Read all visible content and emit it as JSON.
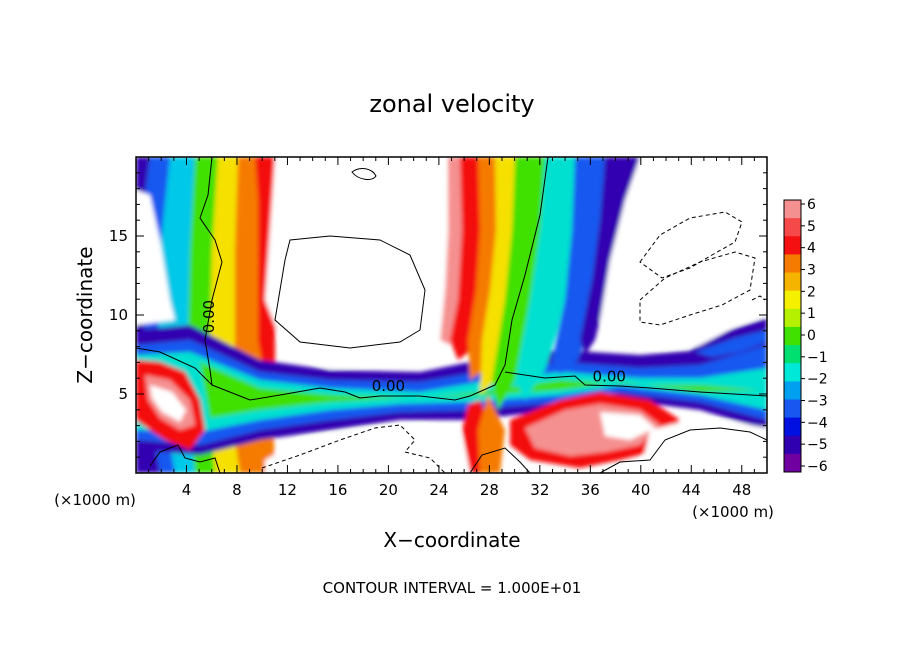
{
  "chart_data": {
    "type": "heatmap",
    "title": "zonal velocity",
    "xlabel": "X−coordinate",
    "ylabel": "Z−coordinate",
    "xunit_left": "(×1000 m)",
    "xunit_right": "(×1000 m)",
    "xlim": [
      0,
      50
    ],
    "ylim": [
      0,
      20
    ],
    "xticks": [
      4,
      8,
      12,
      16,
      20,
      24,
      28,
      32,
      36,
      40,
      44,
      48
    ],
    "yticks": [
      5,
      10,
      15
    ],
    "colorbar": {
      "levels": [
        6,
        5,
        4,
        3,
        2,
        1,
        0,
        -1,
        -2,
        -3,
        -4,
        -5,
        -6
      ],
      "labels": [
        "6",
        "5",
        "4",
        "3",
        "2",
        "1",
        "0",
        "−1",
        "−2",
        "−3",
        "−4",
        "−5",
        "−6"
      ],
      "colors": [
        "#f59090",
        "#f54848",
        "#f41010",
        "#f57a00",
        "#f5b400",
        "#f5f000",
        "#b4f000",
        "#40e000",
        "#00e070",
        "#00e8d8",
        "#00a0f0",
        "#1858f0",
        "#0010e0",
        "#3000b0",
        "#7000a0"
      ]
    },
    "contour_labels": [
      {
        "text": "0.00",
        "x": 20.0,
        "z": 5.2
      },
      {
        "text": "0.00",
        "x": 37.5,
        "z": 5.8
      },
      {
        "text": "0.00",
        "x": 6.2,
        "z": 9.9
      }
    ],
    "footer": "CONTOUR INTERVAL = 1.000E+01"
  },
  "colors": {
    "background": "#ffffff",
    "axis": "#000000"
  }
}
